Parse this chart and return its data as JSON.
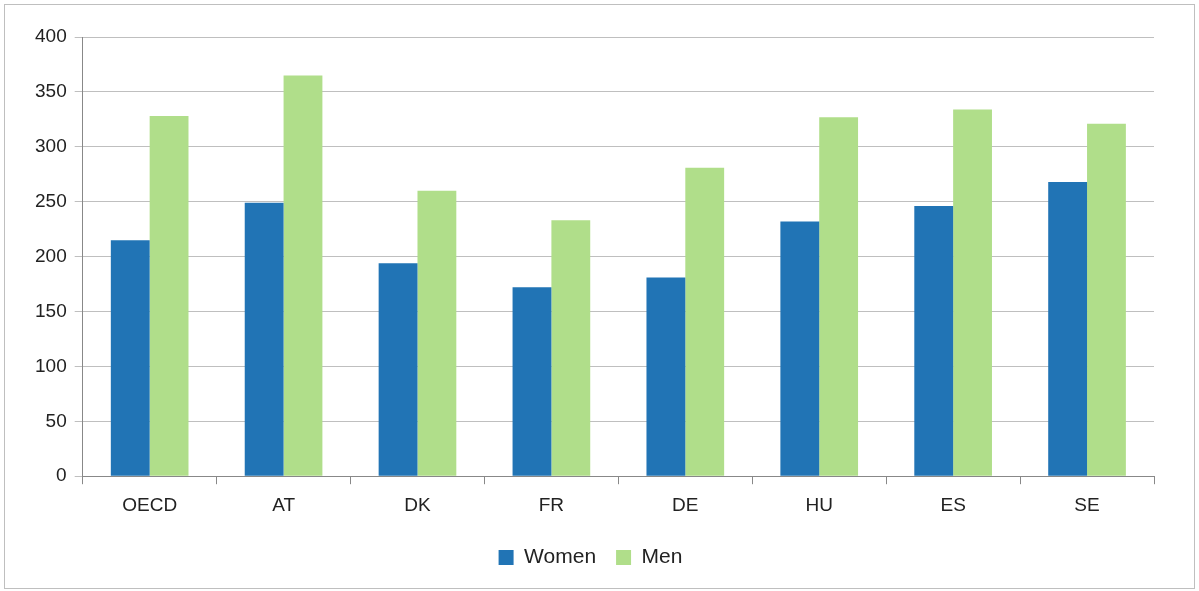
{
  "chart_data": {
    "type": "bar",
    "categories": [
      "OECD",
      "AT",
      "DK",
      "FR",
      "DE",
      "HU",
      "ES",
      "SE"
    ],
    "series": [
      {
        "name": "Women",
        "color": "#2174b5",
        "values": [
          215,
          249,
          194,
          172,
          181,
          232,
          246,
          268
        ]
      },
      {
        "name": "Men",
        "color": "#b0de8a",
        "values": [
          328,
          365,
          260,
          233,
          281,
          327,
          334,
          321
        ]
      }
    ],
    "ylim": [
      0,
      400
    ],
    "yticks": [
      0,
      50,
      100,
      150,
      200,
      250,
      300,
      350,
      400
    ],
    "grid": "y",
    "legend": "bottom"
  }
}
